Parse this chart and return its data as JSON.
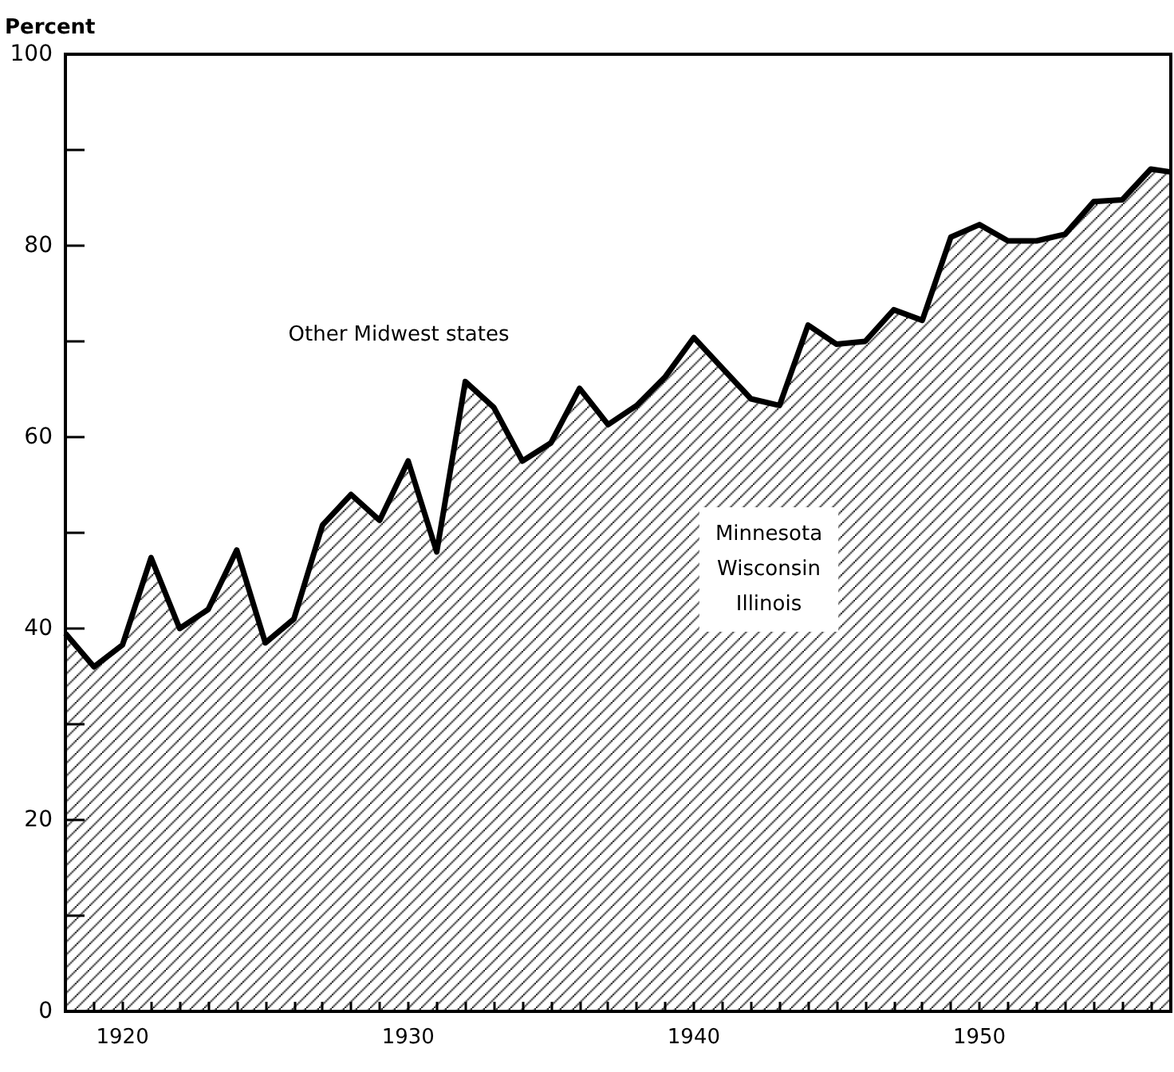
{
  "chart_data": {
    "type": "area",
    "ylabel": "Percent",
    "x": [
      1918,
      1919,
      1920,
      1921,
      1922,
      1923,
      1924,
      1925,
      1926,
      1927,
      1928,
      1929,
      1930,
      1931,
      1932,
      1933,
      1934,
      1935,
      1936,
      1937,
      1938,
      1939,
      1940,
      1941,
      1942,
      1943,
      1944,
      1945,
      1946,
      1947,
      1948,
      1949,
      1950,
      1951,
      1952,
      1953,
      1954,
      1955,
      1956,
      1956.7
    ],
    "series": [
      {
        "color": "#000000",
        "values": [
          39.5,
          36,
          38.3,
          47.4,
          40,
          42,
          48.2,
          38.5,
          41,
          50.8,
          54,
          51.3,
          57.5,
          48,
          65.8,
          63.1,
          57.5,
          59.4,
          65.1,
          61.3,
          63.3,
          66.3,
          70.4,
          67.2,
          64,
          63.3,
          71.7,
          69.7,
          70,
          73.3,
          72.2,
          80.9,
          82.2,
          80.5,
          80.5,
          81.2,
          84.6,
          84.8,
          88,
          87.7
        ]
      }
    ],
    "xlim": [
      1918,
      1956.7
    ],
    "ylim": [
      0,
      100
    ],
    "xticks": [
      {
        "value": 1919,
        "label": null
      },
      1920,
      {
        "value": 1921,
        "label": null
      },
      {
        "value": 1922,
        "label": null
      },
      {
        "value": 1923,
        "label": null
      },
      {
        "value": 1924,
        "label": null
      },
      {
        "value": 1925,
        "label": null
      },
      {
        "value": 1926,
        "label": null
      },
      {
        "value": 1927,
        "label": null
      },
      {
        "value": 1928,
        "label": null
      },
      {
        "value": 1929,
        "label": null
      },
      1930,
      {
        "value": 1931,
        "label": null
      },
      {
        "value": 1932,
        "label": null
      },
      {
        "value": 1933,
        "label": null
      },
      {
        "value": 1934,
        "label": null
      },
      {
        "value": 1935,
        "label": null
      },
      {
        "value": 1936,
        "label": null
      },
      {
        "value": 1937,
        "label": null
      },
      {
        "value": 1938,
        "label": null
      },
      {
        "value": 1939,
        "label": null
      },
      1940,
      {
        "value": 1941,
        "label": null
      },
      {
        "value": 1942,
        "label": null
      },
      {
        "value": 1943,
        "label": null
      },
      {
        "value": 1944,
        "label": null
      },
      {
        "value": 1945,
        "label": null
      },
      {
        "value": 1946,
        "label": null
      },
      {
        "value": 1947,
        "label": null
      },
      {
        "value": 1948,
        "label": null
      },
      {
        "value": 1949,
        "label": null
      },
      1950,
      {
        "value": 1951,
        "label": null
      },
      {
        "value": 1952,
        "label": null
      },
      {
        "value": 1953,
        "label": null
      },
      {
        "value": 1954,
        "label": null
      },
      {
        "value": 1955,
        "label": null
      },
      {
        "value": 1956,
        "label": null
      }
    ],
    "yticks": [
      0,
      {
        "value": 10,
        "label": null
      },
      20,
      {
        "value": 30,
        "label": null
      },
      40,
      {
        "value": 50,
        "label": null
      },
      60,
      {
        "value": 70,
        "label": null
      },
      80,
      {
        "value": 90,
        "label": null
      },
      100
    ],
    "annotations": [
      "Other Midwest states",
      "Minnesota\nWisconsin\nIllinois"
    ],
    "grid": false,
    "marker": "none",
    "line_style": "solid"
  }
}
